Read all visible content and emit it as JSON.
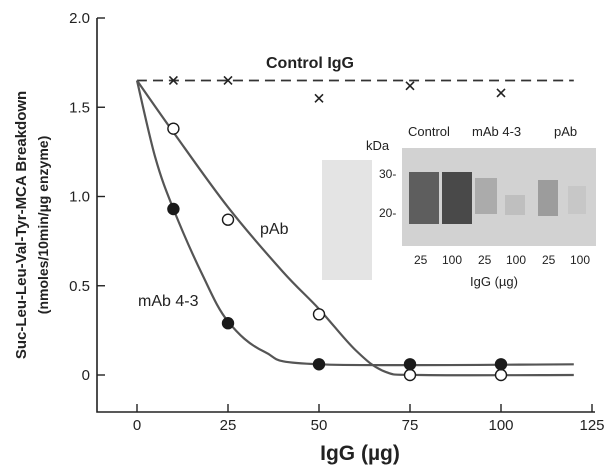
{
  "chart_data": {
    "type": "line",
    "xlabel": "IgG (µg)",
    "ylabel": "Suc-Leu-Leu-Val-Tyr-MCA Breakdown",
    "ylabel_unit": "(nmoles/10min/µg enzyme)",
    "xlim": [
      0,
      125
    ],
    "ylim": [
      0,
      2.0
    ],
    "x_ticks": [
      "0",
      "25",
      "50",
      "75",
      "100",
      "125"
    ],
    "y_ticks": [
      "0",
      "0.5",
      "1.0",
      "1.5",
      "2.0"
    ],
    "x_tick_values": [
      0,
      25,
      50,
      75,
      100,
      125
    ],
    "y_tick_values": [
      0,
      0.5,
      1.0,
      1.5,
      2.0
    ],
    "series": [
      {
        "name": "Control IgG",
        "marker": "x",
        "line": "dashed",
        "points": [
          [
            0,
            1.65
          ],
          [
            10,
            1.65
          ],
          [
            25,
            1.65
          ],
          [
            50,
            1.55
          ],
          [
            75,
            1.62
          ],
          [
            100,
            1.58
          ]
        ],
        "curve": [
          [
            0,
            1.65
          ],
          [
            120,
            1.65
          ]
        ]
      },
      {
        "name": "pAb",
        "marker": "open-circle",
        "line": "solid",
        "points": [
          [
            0,
            1.65
          ],
          [
            10,
            1.38
          ],
          [
            25,
            0.87
          ],
          [
            50,
            0.34
          ],
          [
            75,
            0.0
          ],
          [
            100,
            0.0
          ]
        ],
        "curve": [
          [
            0,
            1.65
          ],
          [
            10,
            1.36
          ],
          [
            25,
            0.94
          ],
          [
            40,
            0.58
          ],
          [
            50,
            0.37
          ],
          [
            60,
            0.14
          ],
          [
            68,
            0.02
          ],
          [
            78,
            0.0
          ],
          [
            120,
            0.0
          ]
        ]
      },
      {
        "name": "mAb 4-3",
        "marker": "filled-circle",
        "line": "solid",
        "points": [
          [
            0,
            1.65
          ],
          [
            10,
            0.93
          ],
          [
            25,
            0.29
          ],
          [
            50,
            0.06
          ],
          [
            75,
            0.06
          ],
          [
            100,
            0.06
          ]
        ],
        "curve": [
          [
            0,
            1.65
          ],
          [
            5,
            1.22
          ],
          [
            10,
            0.93
          ],
          [
            18,
            0.56
          ],
          [
            25,
            0.3
          ],
          [
            35,
            0.13
          ],
          [
            50,
            0.06
          ],
          [
            120,
            0.06
          ]
        ]
      }
    ],
    "inset": {
      "ylabel": "kDa",
      "markers": [
        "30-",
        "20-"
      ],
      "groups": [
        "Control",
        "mAb 4-3",
        "pAb"
      ],
      "lane_labels": [
        "25",
        "100",
        "25",
        "100",
        "25",
        "100"
      ],
      "xlabel": "IgG (µg)"
    }
  }
}
